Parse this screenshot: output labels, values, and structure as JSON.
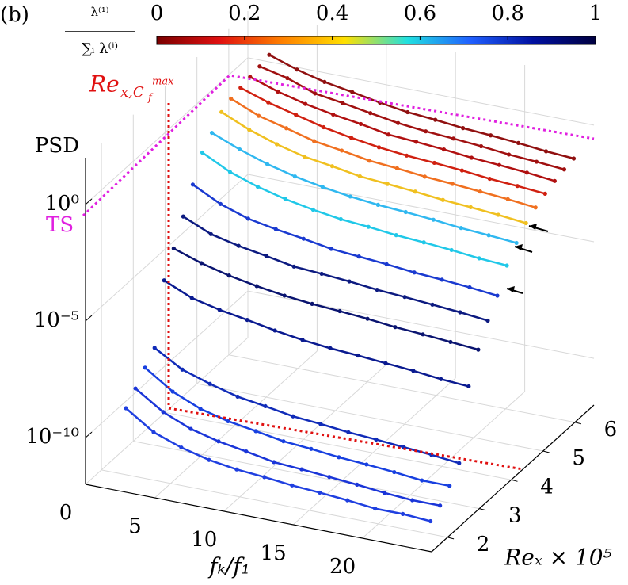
{
  "chart_data": {
    "type": "line3d",
    "panel_label": "(b)",
    "y_label": "PSD",
    "x_label": "fₖ/f₁",
    "z_label": "Reₓ × 10⁵",
    "ylog": true,
    "grid": true,
    "ylim": [
      1e-12,
      100
    ],
    "yticks": [
      {
        "value": 1e-10,
        "label": "10⁻¹⁰"
      },
      {
        "value": 1e-05,
        "label": "10⁻⁵"
      },
      {
        "value": 1,
        "label": "10⁰"
      }
    ],
    "xlim": [
      0,
      25
    ],
    "xticks": [
      0,
      5,
      10,
      15,
      20
    ],
    "zlim": [
      1.5,
      6.6
    ],
    "zticks": [
      2,
      3,
      4,
      5,
      6
    ],
    "colorbar": {
      "label_num": "λ⁽¹⁾",
      "label_den": "∑ᵢ λ⁽ⁱ⁾",
      "lim": [
        0,
        1
      ],
      "ticks": [
        0,
        0.2,
        0.4,
        0.6,
        0.8,
        1
      ],
      "colors": [
        "#7a0000",
        "#e01010",
        "#ff8000",
        "#ffe000",
        "#20e0e0",
        "#2060ff",
        "#0010a0",
        "#000040"
      ]
    },
    "annotations": {
      "ts": "TS",
      "re_base": "Re",
      "re_sub": "x,C",
      "re_subsub": "f",
      "re_sup": "max"
    },
    "x": [
      2,
      4,
      6,
      8,
      10,
      12,
      14,
      16,
      18,
      20,
      22,
      24
    ],
    "series": [
      {
        "re": 1.9,
        "color": "#1f3fe0",
        "values": [
          1e-09,
          1.6e-10,
          6e-11,
          3e-11,
          2e-11,
          1.6e-11,
          1.2e-11,
          1e-11,
          8e-12,
          6e-12,
          6e-12,
          5e-12
        ]
      },
      {
        "re": 2.2,
        "color": "#1a35d8",
        "values": [
          3e-09,
          5e-10,
          1.6e-10,
          8e-11,
          5e-11,
          3e-11,
          2.5e-11,
          2e-11,
          1.6e-11,
          1.2e-11,
          1e-11,
          1e-11
        ]
      },
      {
        "re": 2.5,
        "color": "#1840e0",
        "values": [
          1e-08,
          1.6e-09,
          5e-10,
          2.5e-10,
          1.6e-10,
          1e-10,
          8e-11,
          6e-11,
          5e-11,
          4e-11,
          3e-11,
          3e-11
        ]
      },
      {
        "re": 2.8,
        "color": "#102bb8",
        "values": [
          3e-08,
          6e-09,
          2.5e-09,
          1.2e-09,
          8e-10,
          5e-10,
          4e-10,
          3e-10,
          2.5e-10,
          2e-10,
          1.6e-10,
          1.2e-10
        ]
      },
      {
        "re": 3.1,
        "color": "#0a1a90",
        "values": [
          1e-05,
          3e-06,
          1.6e-06,
          1e-06,
          6e-07,
          4e-07,
          3e-07,
          2.5e-07,
          2e-07,
          1.6e-07,
          1.2e-07,
          1e-07
        ]
      },
      {
        "re": 3.4,
        "color": "#0a1470",
        "values": [
          0.0001,
          4e-05,
          2e-05,
          1.2e-05,
          8e-06,
          6e-06,
          5e-06,
          4e-06,
          3e-06,
          2.5e-06,
          2e-06,
          1.6e-06
        ]
      },
      {
        "re": 3.7,
        "color": "#0c1a80",
        "values": [
          0.001,
          0.0003,
          0.00016,
          0.0001,
          6e-05,
          5e-05,
          4e-05,
          3e-05,
          2.5e-05,
          2e-05,
          1.6e-05,
          1.2e-05
        ]
      },
      {
        "re": 4.0,
        "color": "#1a3ad0",
        "values": [
          0.01,
          0.0025,
          0.001,
          0.0006,
          0.0004,
          0.00025,
          0.0002,
          0.00016,
          0.00012,
          0.0001,
          8e-05,
          6e-05
        ]
      },
      {
        "re": 4.3,
        "color": "#20c8e8",
        "values": [
          0.1,
          0.025,
          0.01,
          0.005,
          0.003,
          0.002,
          0.0016,
          0.0012,
          0.001,
          0.0008,
          0.0006,
          0.0005
        ]
      },
      {
        "re": 4.6,
        "color": "#30b8f0",
        "values": [
          0.3,
          0.1,
          0.04,
          0.02,
          0.012,
          0.008,
          0.006,
          0.005,
          0.004,
          0.003,
          0.0025,
          0.002
        ]
      },
      {
        "re": 4.9,
        "color": "#f0c020",
        "values": [
          1,
          0.3,
          0.12,
          0.06,
          0.04,
          0.025,
          0.02,
          0.016,
          0.012,
          0.01,
          0.008,
          0.006
        ]
      },
      {
        "re": 5.2,
        "color": "#f07020",
        "values": [
          1.6,
          0.5,
          0.25,
          0.12,
          0.08,
          0.05,
          0.04,
          0.03,
          0.025,
          0.02,
          0.016,
          0.012
        ]
      },
      {
        "re": 5.5,
        "color": "#d02010",
        "values": [
          2,
          0.8,
          0.4,
          0.2,
          0.12,
          0.08,
          0.06,
          0.05,
          0.04,
          0.03,
          0.025,
          0.02
        ]
      },
      {
        "re": 5.8,
        "color": "#b01010",
        "values": [
          2.5,
          1,
          0.5,
          0.3,
          0.2,
          0.12,
          0.1,
          0.08,
          0.06,
          0.05,
          0.04,
          0.03
        ]
      },
      {
        "re": 6.1,
        "color": "#a01010",
        "values": [
          3,
          1.6,
          0.6,
          0.4,
          0.25,
          0.16,
          0.12,
          0.1,
          0.08,
          0.06,
          0.05,
          0.04
        ]
      },
      {
        "re": 6.4,
        "color": "#901010",
        "values": [
          4,
          1.6,
          0.8,
          0.5,
          0.3,
          0.2,
          0.16,
          0.12,
          0.1,
          0.08,
          0.06,
          0.05
        ]
      }
    ]
  }
}
